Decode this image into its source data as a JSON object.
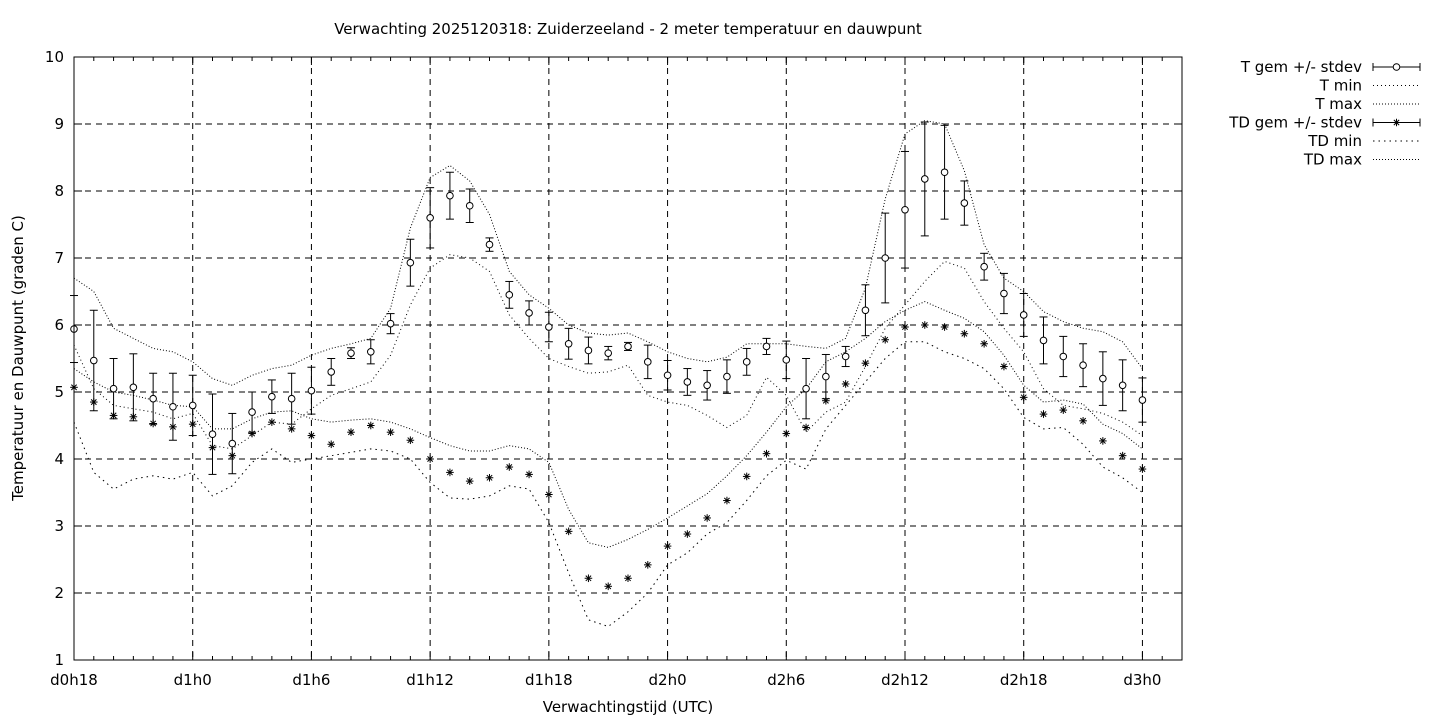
{
  "chart_data": {
    "type": "line",
    "title": "Verwachting 2025120318: Zuiderzeeland - 2 meter temperatuur en dauwpunt",
    "xlabel": "Verwachtingstijd (UTC)",
    "ylabel": "Temperatuur en Dauwpunt (graden C)",
    "xlim": [
      18,
      74
    ],
    "ylim": [
      1,
      10
    ],
    "grid": true,
    "legend_position": "outside-top-right",
    "x_ticks": [
      {
        "value": 18,
        "label": "d0h18"
      },
      {
        "value": 24,
        "label": "d1h0"
      },
      {
        "value": 30,
        "label": "d1h6"
      },
      {
        "value": 36,
        "label": "d1h12"
      },
      {
        "value": 42,
        "label": "d1h18"
      },
      {
        "value": 48,
        "label": "d2h0"
      },
      {
        "value": 54,
        "label": "d2h6"
      },
      {
        "value": 60,
        "label": "d2h12"
      },
      {
        "value": 66,
        "label": "d2h18"
      },
      {
        "value": 72,
        "label": "d3h0"
      }
    ],
    "y_ticks": [
      1,
      2,
      3,
      4,
      5,
      6,
      7,
      8,
      9,
      10
    ],
    "x": [
      18,
      19,
      20,
      21,
      22,
      23,
      24,
      25,
      26,
      27,
      28,
      29,
      30,
      31,
      32,
      33,
      34,
      35,
      36,
      37,
      38,
      39,
      40,
      41,
      42,
      43,
      44,
      45,
      46,
      47,
      48,
      49,
      50,
      51,
      52,
      53,
      54,
      55,
      56,
      57,
      58,
      59,
      60,
      61,
      62,
      63,
      64,
      65,
      66,
      67,
      68,
      69,
      70,
      71,
      72
    ],
    "series": [
      {
        "name": "T gem +/- stdev",
        "marker": "circle",
        "values": [
          5.94,
          5.47,
          5.05,
          5.07,
          4.9,
          4.78,
          4.8,
          4.37,
          4.23,
          4.7,
          4.93,
          4.9,
          5.02,
          5.3,
          5.58,
          5.6,
          6.02,
          6.93,
          7.6,
          7.93,
          7.78,
          7.2,
          6.45,
          6.18,
          5.97,
          5.72,
          5.62,
          5.58,
          5.68,
          5.45,
          5.25,
          5.15,
          5.1,
          5.23,
          5.45,
          5.68,
          5.48,
          5.05,
          5.23,
          5.53,
          6.22,
          7.0,
          7.72,
          8.18,
          8.28,
          7.82,
          6.87,
          6.47,
          6.15,
          5.77,
          5.53,
          5.4,
          5.2,
          5.1,
          4.88
        ],
        "stdev": [
          0.5,
          0.75,
          0.45,
          0.5,
          0.38,
          0.5,
          0.45,
          0.6,
          0.45,
          0.3,
          0.25,
          0.38,
          0.35,
          0.2,
          0.08,
          0.18,
          0.15,
          0.35,
          0.45,
          0.35,
          0.25,
          0.1,
          0.2,
          0.18,
          0.22,
          0.23,
          0.2,
          0.1,
          0.06,
          0.25,
          0.22,
          0.2,
          0.22,
          0.25,
          0.2,
          0.12,
          0.28,
          0.45,
          0.33,
          0.15,
          0.38,
          0.67,
          0.87,
          0.85,
          0.7,
          0.33,
          0.2,
          0.3,
          0.32,
          0.35,
          0.3,
          0.32,
          0.4,
          0.38,
          0.33
        ]
      },
      {
        "name": "T min",
        "values": [
          5.7,
          5.05,
          4.8,
          4.75,
          4.7,
          4.6,
          4.68,
          4.2,
          4.15,
          4.35,
          4.55,
          4.52,
          4.75,
          4.95,
          5.05,
          5.15,
          5.55,
          6.3,
          6.85,
          7.05,
          7.0,
          6.8,
          6.15,
          5.8,
          5.5,
          5.38,
          5.28,
          5.3,
          5.4,
          4.95,
          4.85,
          4.8,
          4.65,
          4.47,
          4.65,
          5.22,
          4.95,
          4.4,
          4.7,
          4.85,
          5.38,
          5.95,
          6.3,
          6.65,
          6.95,
          6.85,
          6.35,
          5.95,
          5.6,
          5.05,
          4.8,
          4.75,
          4.68,
          4.55,
          4.35
        ]
      },
      {
        "name": "T max",
        "values": [
          6.7,
          6.5,
          5.95,
          5.8,
          5.65,
          5.6,
          5.45,
          5.2,
          5.1,
          5.25,
          5.35,
          5.4,
          5.55,
          5.65,
          5.72,
          5.8,
          6.25,
          7.45,
          8.2,
          8.38,
          8.15,
          7.65,
          6.8,
          6.45,
          6.25,
          6.0,
          5.88,
          5.85,
          5.88,
          5.75,
          5.6,
          5.5,
          5.45,
          5.52,
          5.72,
          5.72,
          5.72,
          5.68,
          5.65,
          5.8,
          6.55,
          7.88,
          8.85,
          9.05,
          9.0,
          8.3,
          7.2,
          6.7,
          6.5,
          6.2,
          6.05,
          5.95,
          5.9,
          5.75,
          5.35
        ]
      },
      {
        "name": "TD gem +/- stdev",
        "marker": "star",
        "values": [
          5.07,
          4.85,
          4.65,
          4.63,
          4.53,
          4.48,
          4.52,
          4.17,
          4.05,
          4.38,
          4.55,
          4.45,
          4.35,
          4.22,
          4.4,
          4.5,
          4.4,
          4.28,
          4.0,
          3.8,
          3.67,
          3.72,
          3.88,
          3.77,
          3.47,
          2.92,
          2.22,
          2.1,
          2.22,
          2.42,
          2.7,
          2.88,
          3.12,
          3.38,
          3.74,
          4.08,
          4.38,
          4.47,
          4.87,
          5.12,
          5.43,
          5.78,
          5.97,
          6.0,
          5.97,
          5.87,
          5.72,
          5.38,
          4.92,
          4.67,
          4.73,
          4.57,
          4.27,
          4.05,
          3.85
        ]
      },
      {
        "name": "TD min",
        "values": [
          4.55,
          3.8,
          3.55,
          3.7,
          3.75,
          3.7,
          3.8,
          3.45,
          3.6,
          3.95,
          4.15,
          3.95,
          4.0,
          4.05,
          4.1,
          4.15,
          4.12,
          4.0,
          3.65,
          3.42,
          3.4,
          3.45,
          3.6,
          3.55,
          3.05,
          2.3,
          1.6,
          1.5,
          1.72,
          2.0,
          2.42,
          2.6,
          2.88,
          3.05,
          3.38,
          3.75,
          3.98,
          3.85,
          4.45,
          4.8,
          5.15,
          5.5,
          5.75,
          5.75,
          5.6,
          5.5,
          5.35,
          5.05,
          4.62,
          4.45,
          4.47,
          4.22,
          3.88,
          3.72,
          3.5
        ]
      },
      {
        "name": "TD max",
        "values": [
          5.35,
          5.15,
          5.0,
          4.95,
          4.88,
          4.8,
          4.78,
          4.45,
          4.45,
          4.6,
          4.7,
          4.72,
          4.6,
          4.55,
          4.58,
          4.6,
          4.55,
          4.45,
          4.32,
          4.2,
          4.12,
          4.12,
          4.2,
          4.15,
          3.95,
          3.25,
          2.75,
          2.68,
          2.8,
          2.95,
          3.12,
          3.3,
          3.48,
          3.75,
          4.05,
          4.4,
          4.78,
          5.05,
          5.45,
          5.6,
          5.8,
          6.05,
          6.22,
          6.35,
          6.22,
          6.1,
          5.9,
          5.55,
          5.1,
          4.85,
          4.88,
          4.82,
          4.52,
          4.38,
          4.15
        ]
      }
    ]
  }
}
